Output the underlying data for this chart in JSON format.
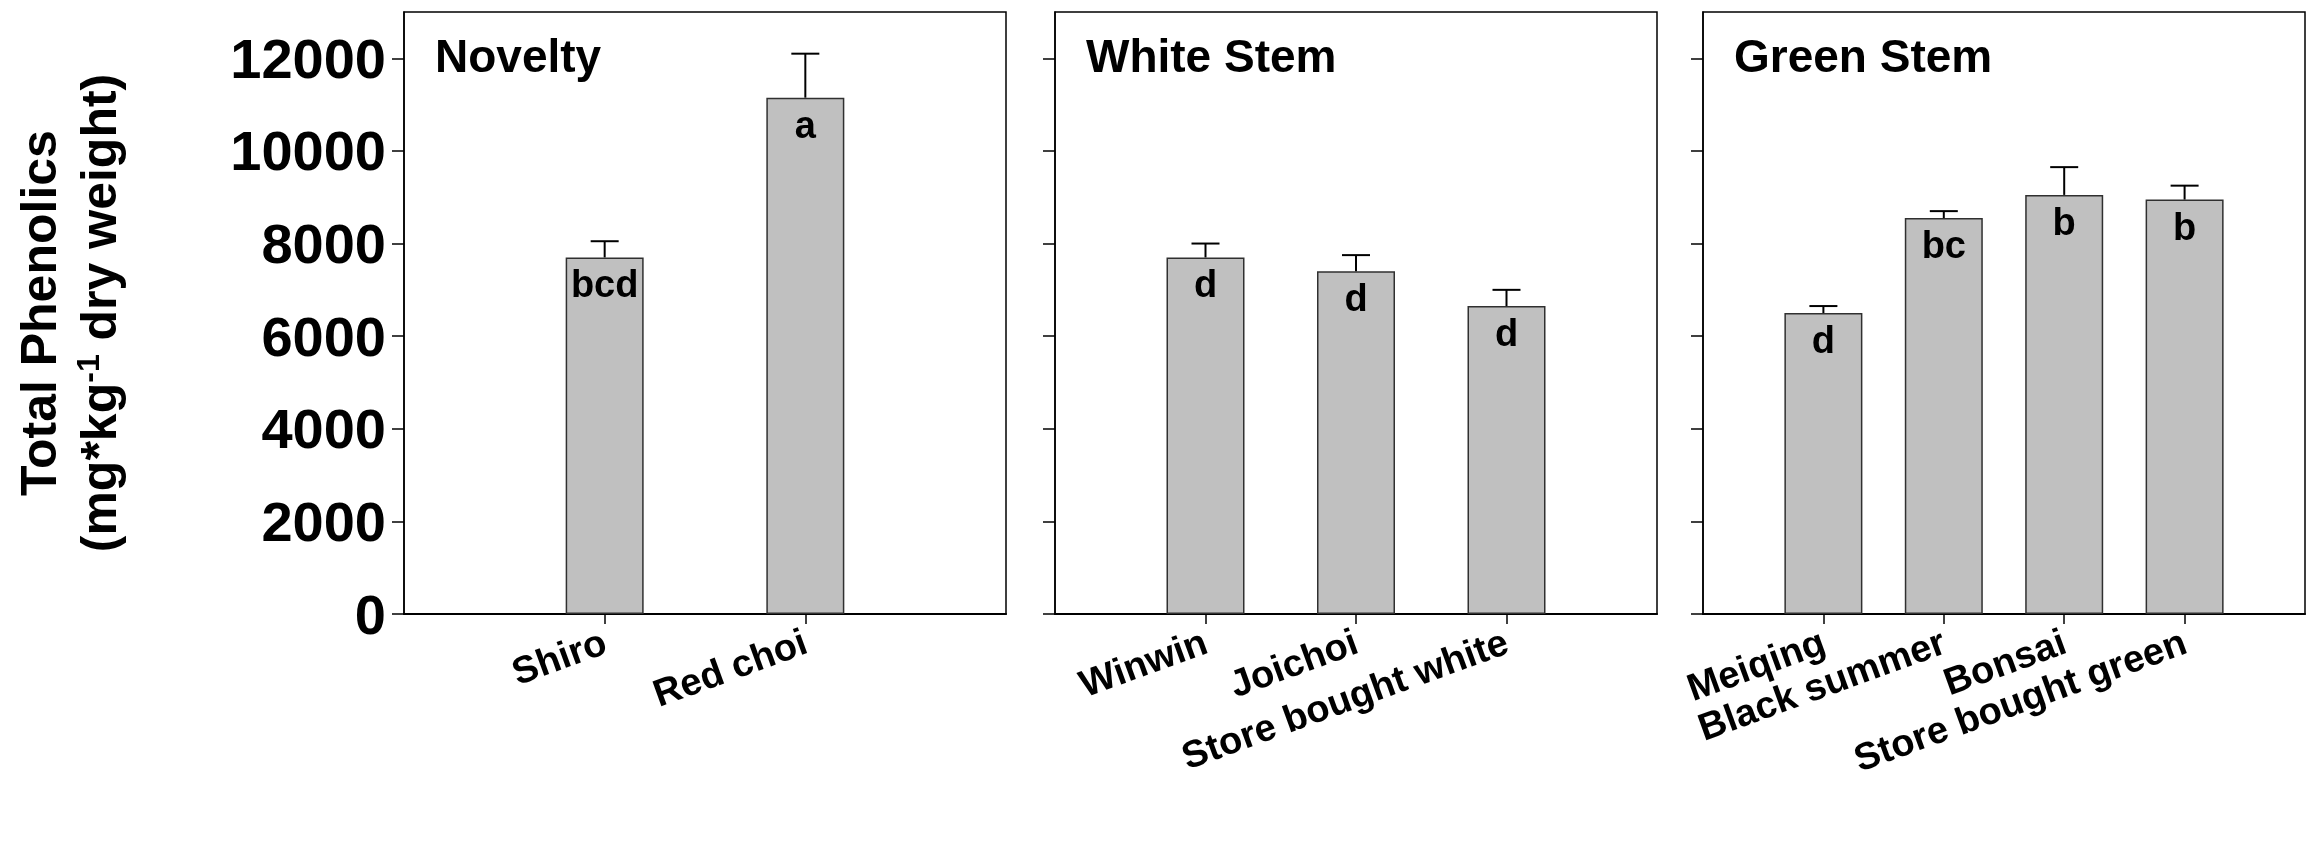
{
  "chart_data": [
    {
      "type": "bar",
      "title": "Novelty",
      "ylabel": "Total Phenolics\n(mg*kg$^{-1}$ dry weight)",
      "categories": [
        "Shiro",
        "Red choi"
      ],
      "values": [
        7700,
        11150
      ],
      "errors": [
        [
          7700,
          8050
        ],
        [
          11150,
          12100
        ]
      ],
      "value_labels": [
        "bcd",
        "a"
      ],
      "color": "#c0c0c0",
      "ylim": [
        0,
        13000
      ],
      "yticks": [
        0,
        2000,
        4000,
        6000,
        8000,
        10000,
        12000
      ],
      "grid": false
    },
    {
      "type": "bar",
      "title": "White Stem",
      "categories": [
        "Winwin",
        "Joichoi",
        "Store bought white"
      ],
      "values": [
        7700,
        7400,
        6650
      ],
      "errors": [
        [
          7700,
          8000
        ],
        [
          7400,
          7750
        ],
        [
          6650,
          7000
        ]
      ],
      "value_labels": [
        "d",
        "d",
        "d"
      ],
      "color": "#c0c0c0",
      "ylim": [
        0,
        13000
      ],
      "yticks": [
        0,
        2000,
        4000,
        6000,
        8000,
        10000,
        12000
      ],
      "tick_labels": "x",
      "grid": false
    },
    {
      "type": "bar",
      "title": "Green Stem",
      "categories": [
        "Meiqing",
        "Black summer",
        "Bonsai",
        "Store bought green"
      ],
      "values": [
        6500,
        8550,
        9050,
        8950
      ],
      "errors": [
        [
          6500,
          6650
        ],
        [
          8550,
          8700
        ],
        [
          9050,
          9650
        ],
        [
          8950,
          9250
        ]
      ],
      "value_labels": [
        "d",
        "bc",
        "b",
        "b"
      ],
      "color": "#c0c0c0",
      "ylim": [
        0,
        13000
      ],
      "yticks": [
        0,
        2000,
        4000,
        6000,
        8000,
        10000,
        12000
      ],
      "tick_labels": "x",
      "grid": false
    }
  ]
}
